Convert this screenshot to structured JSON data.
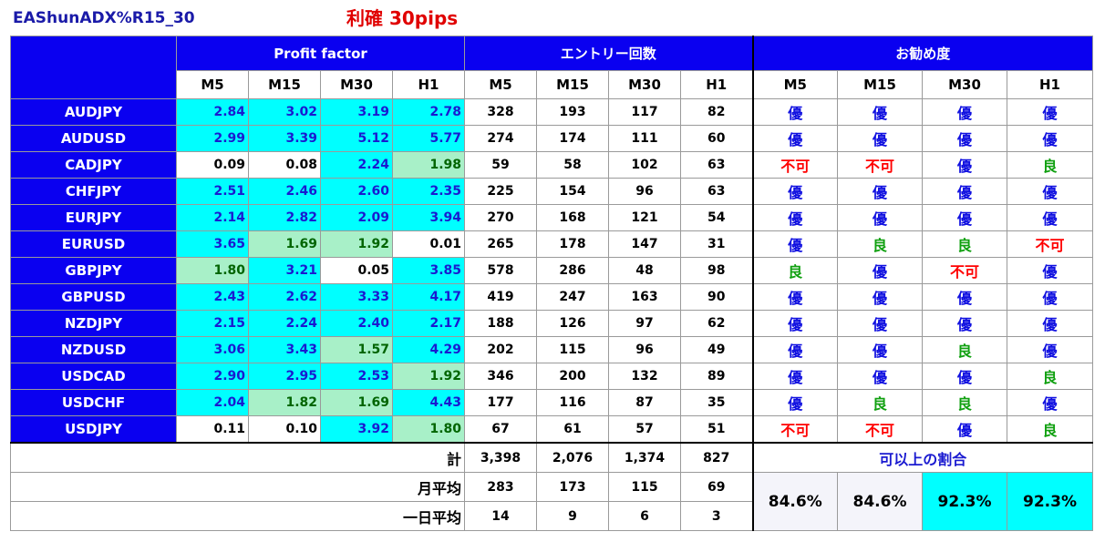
{
  "header": {
    "ea_name": "EAShunADX%R15_30",
    "take_profit": "利確 30pips"
  },
  "groups": {
    "profit_factor": "Profit factor",
    "entries": "エントリー回数",
    "recommend": "お勧め度"
  },
  "timeframes": [
    "M5",
    "M15",
    "M30",
    "H1"
  ],
  "rows": [
    {
      "pair": "AUDJPY",
      "pf": [
        "2.84",
        "3.02",
        "3.19",
        "2.78"
      ],
      "pfbg": [
        "cyan",
        "cyan",
        "cyan",
        "cyan"
      ],
      "cnt": [
        "328",
        "193",
        "117",
        "82"
      ],
      "rec": [
        "優",
        "優",
        "優",
        "優"
      ],
      "reccol": [
        "blue",
        "blue",
        "blue",
        "blue"
      ]
    },
    {
      "pair": "AUDUSD",
      "pf": [
        "2.99",
        "3.39",
        "5.12",
        "5.77"
      ],
      "pfbg": [
        "cyan",
        "cyan",
        "cyan",
        "cyan"
      ],
      "cnt": [
        "274",
        "174",
        "111",
        "60"
      ],
      "rec": [
        "優",
        "優",
        "優",
        "優"
      ],
      "reccol": [
        "blue",
        "blue",
        "blue",
        "blue"
      ]
    },
    {
      "pair": "CADJPY",
      "pf": [
        "0.09",
        "0.08",
        "2.24",
        "1.98"
      ],
      "pfbg": [
        "white",
        "white",
        "cyan",
        "green"
      ],
      "cnt": [
        "59",
        "58",
        "102",
        "63"
      ],
      "rec": [
        "不可",
        "不可",
        "優",
        "良"
      ],
      "reccol": [
        "red",
        "red",
        "blue",
        "green"
      ]
    },
    {
      "pair": "CHFJPY",
      "pf": [
        "2.51",
        "2.46",
        "2.60",
        "2.35"
      ],
      "pfbg": [
        "cyan",
        "cyan",
        "cyan",
        "cyan"
      ],
      "cnt": [
        "225",
        "154",
        "96",
        "63"
      ],
      "rec": [
        "優",
        "優",
        "優",
        "優"
      ],
      "reccol": [
        "blue",
        "blue",
        "blue",
        "blue"
      ]
    },
    {
      "pair": "EURJPY",
      "pf": [
        "2.14",
        "2.82",
        "2.09",
        "3.94"
      ],
      "pfbg": [
        "cyan",
        "cyan",
        "cyan",
        "cyan"
      ],
      "cnt": [
        "270",
        "168",
        "121",
        "54"
      ],
      "rec": [
        "優",
        "優",
        "優",
        "優"
      ],
      "reccol": [
        "blue",
        "blue",
        "blue",
        "blue"
      ]
    },
    {
      "pair": "EURUSD",
      "pf": [
        "3.65",
        "1.69",
        "1.92",
        "0.01"
      ],
      "pfbg": [
        "cyan",
        "green",
        "green",
        "white"
      ],
      "cnt": [
        "265",
        "178",
        "147",
        "31"
      ],
      "rec": [
        "優",
        "良",
        "良",
        "不可"
      ],
      "reccol": [
        "blue",
        "green",
        "green",
        "red"
      ]
    },
    {
      "pair": "GBPJPY",
      "pf": [
        "1.80",
        "3.21",
        "0.05",
        "3.85"
      ],
      "pfbg": [
        "green",
        "cyan",
        "white",
        "cyan"
      ],
      "cnt": [
        "578",
        "286",
        "48",
        "98"
      ],
      "rec": [
        "良",
        "優",
        "不可",
        "優"
      ],
      "reccol": [
        "green",
        "blue",
        "red",
        "blue"
      ]
    },
    {
      "pair": "GBPUSD",
      "pf": [
        "2.43",
        "2.62",
        "3.33",
        "4.17"
      ],
      "pfbg": [
        "cyan",
        "cyan",
        "cyan",
        "cyan"
      ],
      "cnt": [
        "419",
        "247",
        "163",
        "90"
      ],
      "rec": [
        "優",
        "優",
        "優",
        "優"
      ],
      "reccol": [
        "blue",
        "blue",
        "blue",
        "blue"
      ]
    },
    {
      "pair": "NZDJPY",
      "pf": [
        "2.15",
        "2.24",
        "2.40",
        "2.17"
      ],
      "pfbg": [
        "cyan",
        "cyan",
        "cyan",
        "cyan"
      ],
      "cnt": [
        "188",
        "126",
        "97",
        "62"
      ],
      "rec": [
        "優",
        "優",
        "優",
        "優"
      ],
      "reccol": [
        "blue",
        "blue",
        "blue",
        "blue"
      ]
    },
    {
      "pair": "NZDUSD",
      "pf": [
        "3.06",
        "3.43",
        "1.57",
        "4.29"
      ],
      "pfbg": [
        "cyan",
        "cyan",
        "green",
        "cyan"
      ],
      "cnt": [
        "202",
        "115",
        "96",
        "49"
      ],
      "rec": [
        "優",
        "優",
        "良",
        "優"
      ],
      "reccol": [
        "blue",
        "blue",
        "green",
        "blue"
      ]
    },
    {
      "pair": "USDCAD",
      "pf": [
        "2.90",
        "2.95",
        "2.53",
        "1.92"
      ],
      "pfbg": [
        "cyan",
        "cyan",
        "cyan",
        "green"
      ],
      "cnt": [
        "346",
        "200",
        "132",
        "89"
      ],
      "rec": [
        "優",
        "優",
        "優",
        "良"
      ],
      "reccol": [
        "blue",
        "blue",
        "blue",
        "green"
      ]
    },
    {
      "pair": "USDCHF",
      "pf": [
        "2.04",
        "1.82",
        "1.69",
        "4.43"
      ],
      "pfbg": [
        "cyan",
        "green",
        "green",
        "cyan"
      ],
      "cnt": [
        "177",
        "116",
        "87",
        "35"
      ],
      "rec": [
        "優",
        "良",
        "良",
        "優"
      ],
      "reccol": [
        "blue",
        "green",
        "green",
        "blue"
      ]
    },
    {
      "pair": "USDJPY",
      "pf": [
        "0.11",
        "0.10",
        "3.92",
        "1.80"
      ],
      "pfbg": [
        "white",
        "white",
        "cyan",
        "green"
      ],
      "cnt": [
        "67",
        "61",
        "57",
        "51"
      ],
      "rec": [
        "不可",
        "不可",
        "優",
        "良"
      ],
      "reccol": [
        "red",
        "red",
        "blue",
        "green"
      ]
    }
  ],
  "totals": {
    "sum_label": "計",
    "sum": [
      "3,398",
      "2,076",
      "1,374",
      "827"
    ],
    "monthly_label": "月平均",
    "monthly": [
      "283",
      "173",
      "115",
      "69"
    ],
    "daily_label": "一日平均",
    "daily": [
      "14",
      "9",
      "6",
      "3"
    ]
  },
  "ratio": {
    "title": "可以上の割合",
    "values": [
      "84.6%",
      "84.6%",
      "92.3%",
      "92.3%"
    ],
    "highlight": [
      false,
      false,
      true,
      true
    ]
  },
  "colors": {
    "header_blue": "#0a00f0",
    "pf_good": "#00ffff",
    "pf_ok": "#a8f0c8",
    "rec_excellent": "#1010e0",
    "rec_good": "#10a010",
    "rec_bad": "#ff0000"
  }
}
